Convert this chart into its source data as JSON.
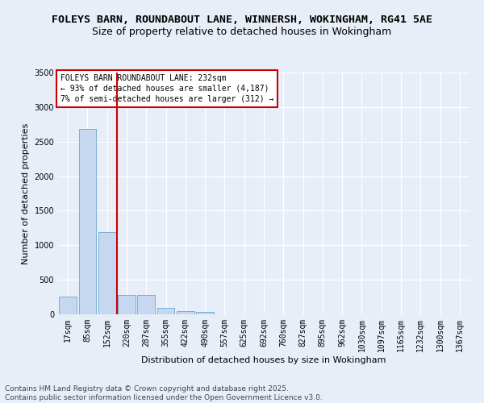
{
  "title_line1": "FOLEYS BARN, ROUNDABOUT LANE, WINNERSH, WOKINGHAM, RG41 5AE",
  "title_line2": "Size of property relative to detached houses in Wokingham",
  "xlabel": "Distribution of detached houses by size in Wokingham",
  "ylabel": "Number of detached properties",
  "categories": [
    "17sqm",
    "85sqm",
    "152sqm",
    "220sqm",
    "287sqm",
    "355sqm",
    "422sqm",
    "490sqm",
    "557sqm",
    "625sqm",
    "692sqm",
    "760sqm",
    "827sqm",
    "895sqm",
    "962sqm",
    "1030sqm",
    "1097sqm",
    "1165sqm",
    "1232sqm",
    "1300sqm",
    "1367sqm"
  ],
  "values": [
    255,
    2680,
    1185,
    285,
    285,
    95,
    50,
    30,
    0,
    0,
    0,
    0,
    0,
    0,
    0,
    0,
    0,
    0,
    0,
    0,
    0
  ],
  "bar_color": "#c5d8f0",
  "bar_edge_color": "#7aafd4",
  "vline_color": "#cc0000",
  "vline_pos": 2.5,
  "annotation_text": "FOLEYS BARN ROUNDABOUT LANE: 232sqm\n← 93% of detached houses are smaller (4,187)\n7% of semi-detached houses are larger (312) →",
  "annotation_box_color": "#ffffff",
  "annotation_box_edge": "#cc0000",
  "ylim": [
    0,
    3500
  ],
  "yticks": [
    0,
    500,
    1000,
    1500,
    2000,
    2500,
    3000,
    3500
  ],
  "background_color": "#e8eef8",
  "plot_bg_color": "#e8eef8",
  "grid_color": "#ffffff",
  "footer_line1": "Contains HM Land Registry data © Crown copyright and database right 2025.",
  "footer_line2": "Contains public sector information licensed under the Open Government Licence v3.0.",
  "title_fontsize": 9.5,
  "subtitle_fontsize": 9,
  "axis_label_fontsize": 8,
  "tick_fontsize": 7,
  "annotation_fontsize": 7,
  "footer_fontsize": 6.5
}
